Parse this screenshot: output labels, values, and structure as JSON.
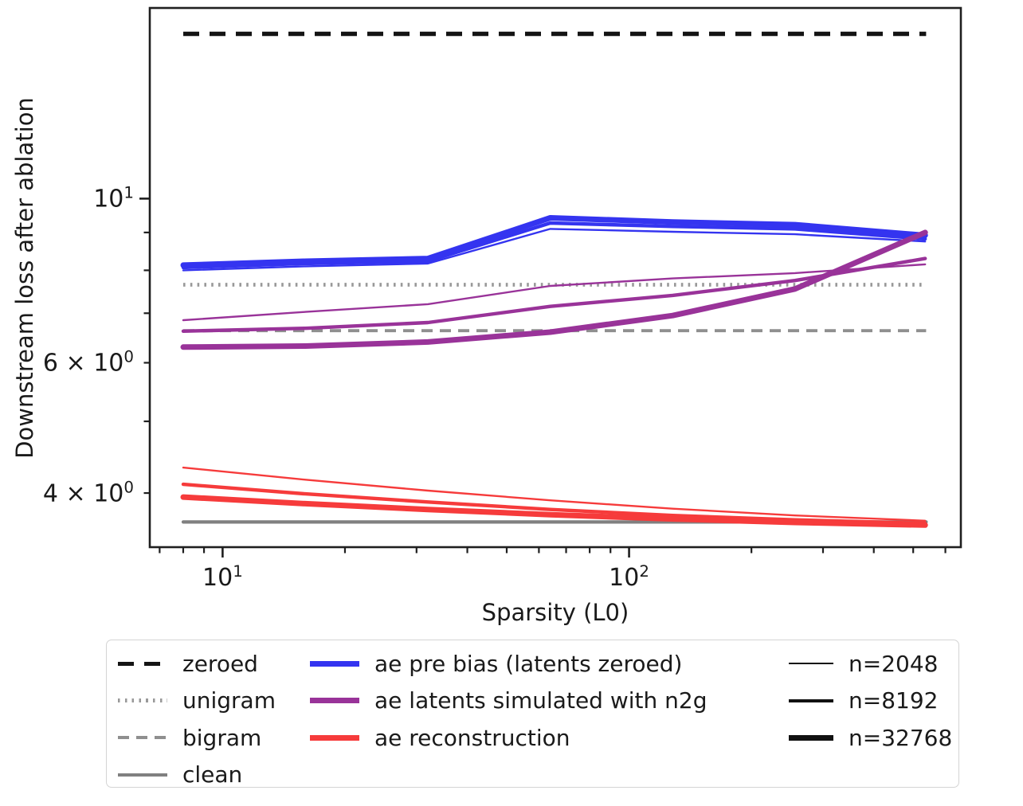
{
  "figure": {
    "xlabel": "Sparsity (L0)",
    "ylabel": "Downstream loss after ablation",
    "background": "#ffffff",
    "spine_color": "#1f1f1f"
  },
  "chart_data": {
    "type": "line",
    "title": "",
    "xlabel": "Sparsity (L0)",
    "ylabel": "Downstream loss after ablation",
    "xscale": "log",
    "yscale": "log",
    "xlim": [
      6.62,
      655
    ],
    "ylim": [
      3.38,
      18.1
    ],
    "grid": false,
    "legend_position": "below plot, 3 columns",
    "x": [
      8,
      16,
      32,
      64,
      128,
      256,
      535
    ],
    "baseline_x_extent": [
      8,
      538
    ],
    "baselines": [
      {
        "name": "zeroed",
        "value": 16.7,
        "style": "zeroed"
      },
      {
        "name": "unigram",
        "value": 7.65,
        "style": "unigram"
      },
      {
        "name": "bigram",
        "value": 6.63,
        "style": "bigram"
      },
      {
        "name": "clean",
        "value": 3.655,
        "style": "clean"
      }
    ],
    "series": [
      {
        "group": "ae pre bias (latents zeroed)",
        "n": 2048,
        "color_key": "blue",
        "width_key": "n2048",
        "values": [
          8.0,
          8.1,
          8.17,
          9.1,
          9.02,
          8.95,
          8.75
        ]
      },
      {
        "group": "ae pre bias (latents zeroed)",
        "n": 8192,
        "color_key": "blue",
        "width_key": "n8192",
        "values": [
          8.07,
          8.17,
          8.23,
          9.27,
          9.17,
          9.1,
          8.82
        ]
      },
      {
        "group": "ae pre bias (latents zeroed)",
        "n": 32768,
        "color_key": "blue",
        "width_key": "n32768",
        "values": [
          8.13,
          8.23,
          8.3,
          9.42,
          9.3,
          9.22,
          8.92
        ]
      },
      {
        "group": "ae reconstruction",
        "n": 2048,
        "color_key": "red",
        "width_key": "n2048",
        "values": [
          4.33,
          4.17,
          4.03,
          3.91,
          3.81,
          3.73,
          3.67
        ]
      },
      {
        "group": "ae reconstruction",
        "n": 8192,
        "color_key": "red",
        "width_key": "n8192",
        "values": [
          4.11,
          3.99,
          3.89,
          3.8,
          3.73,
          3.68,
          3.64
        ]
      },
      {
        "group": "ae reconstruction",
        "n": 32768,
        "color_key": "red",
        "width_key": "n32768",
        "values": [
          3.95,
          3.87,
          3.8,
          3.74,
          3.69,
          3.65,
          3.62
        ]
      },
      {
        "group": "ae latents simulated with n2g",
        "n": 2048,
        "color_key": "purple",
        "width_key": "n2048",
        "values": [
          6.85,
          7.03,
          7.2,
          7.62,
          7.8,
          7.93,
          8.15
        ]
      },
      {
        "group": "ae latents simulated with n2g",
        "n": 8192,
        "color_key": "purple",
        "width_key": "n8192",
        "values": [
          6.62,
          6.68,
          6.8,
          7.15,
          7.4,
          7.75,
          8.3
        ]
      },
      {
        "group": "ae latents simulated with n2g",
        "n": 32768,
        "color_key": "purple",
        "width_key": "n32768",
        "values": [
          6.3,
          6.32,
          6.4,
          6.6,
          6.95,
          7.55,
          9.0
        ]
      }
    ],
    "axis_ticks": {
      "times_symbol": "×",
      "base": "10",
      "x_major": [
        {
          "v": 10,
          "exp": "1"
        },
        {
          "v": 100,
          "exp": "2"
        }
      ],
      "x_minor": [
        7,
        8,
        9,
        20,
        30,
        40,
        50,
        60,
        70,
        80,
        90,
        200,
        300,
        400,
        500,
        600
      ],
      "y_major": [
        {
          "v": 10,
          "exp": "1"
        }
      ],
      "y_minor": [
        4,
        5,
        6,
        7,
        8,
        9
      ],
      "y_minor_labeled": [
        {
          "v": 6,
          "coeff": "6",
          "exp": "0"
        },
        {
          "v": 4,
          "coeff": "4",
          "exp": "0"
        }
      ]
    }
  },
  "line_styles": {
    "zeroed": {
      "color": "#141414",
      "width": 5.5,
      "dash": [
        20,
        13
      ]
    },
    "unigram": {
      "color": "#999999",
      "width": 4.8,
      "dash": [
        2.6,
        6.2
      ]
    },
    "bigram": {
      "color": "#8f8f8f",
      "width": 3.8,
      "dash": [
        14,
        9
      ]
    },
    "clean": {
      "color": "#808080",
      "width": 4.2,
      "dash": null
    },
    "blue": {
      "color": "#3434f0",
      "width": 7.0,
      "dash": null
    },
    "purple": {
      "color": "#993399",
      "width": 7.0,
      "dash": null
    },
    "red": {
      "color": "#f63b3b",
      "width": 7.0,
      "dash": null
    },
    "n2048": {
      "color": "#111111",
      "width": 2.4,
      "dash": null
    },
    "n8192": {
      "color": "#111111",
      "width": 4.4,
      "dash": null
    },
    "n32768": {
      "color": "#111111",
      "width": 7.0,
      "dash": null
    }
  },
  "legend": {
    "items": [
      {
        "label": "zeroed"
      },
      {
        "label": "unigram"
      },
      {
        "label": "bigram"
      },
      {
        "label": "clean"
      },
      {
        "label": "ae pre bias (latents zeroed)"
      },
      {
        "label": "ae latents simulated with n2g"
      },
      {
        "label": "ae reconstruction"
      },
      {
        "label": "n=2048"
      },
      {
        "label": "n=8192"
      },
      {
        "label": "n=32768"
      }
    ]
  }
}
